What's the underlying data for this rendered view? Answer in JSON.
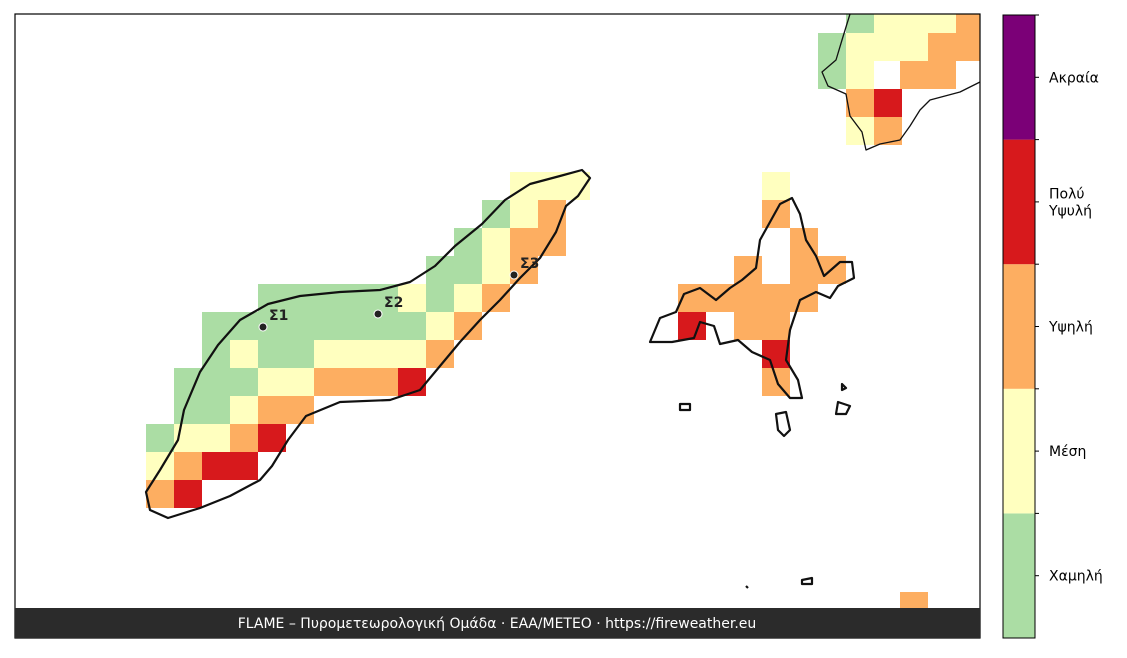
{
  "map": {
    "stations": [
      {
        "label": "Σ1"
      },
      {
        "label": "Σ2"
      },
      {
        "label": "Σ3"
      }
    ],
    "legend": {
      "levels": [
        {
          "label": "Χαμηλή",
          "color": "#abdda4"
        },
        {
          "label": "Μέση",
          "color": "#ffffbf"
        },
        {
          "label": "Υψηλή",
          "color": "#fdae61"
        },
        {
          "label": "Πολύ\nΥψυλή",
          "color": "#d7191c"
        },
        {
          "label": "Ακραία",
          "color": "#7b0077"
        }
      ]
    },
    "footer": "FLAME – Πυρομετεωρολογική Ομάδα · ΕΑΑ/METEO · https://fireweather.eu"
  }
}
